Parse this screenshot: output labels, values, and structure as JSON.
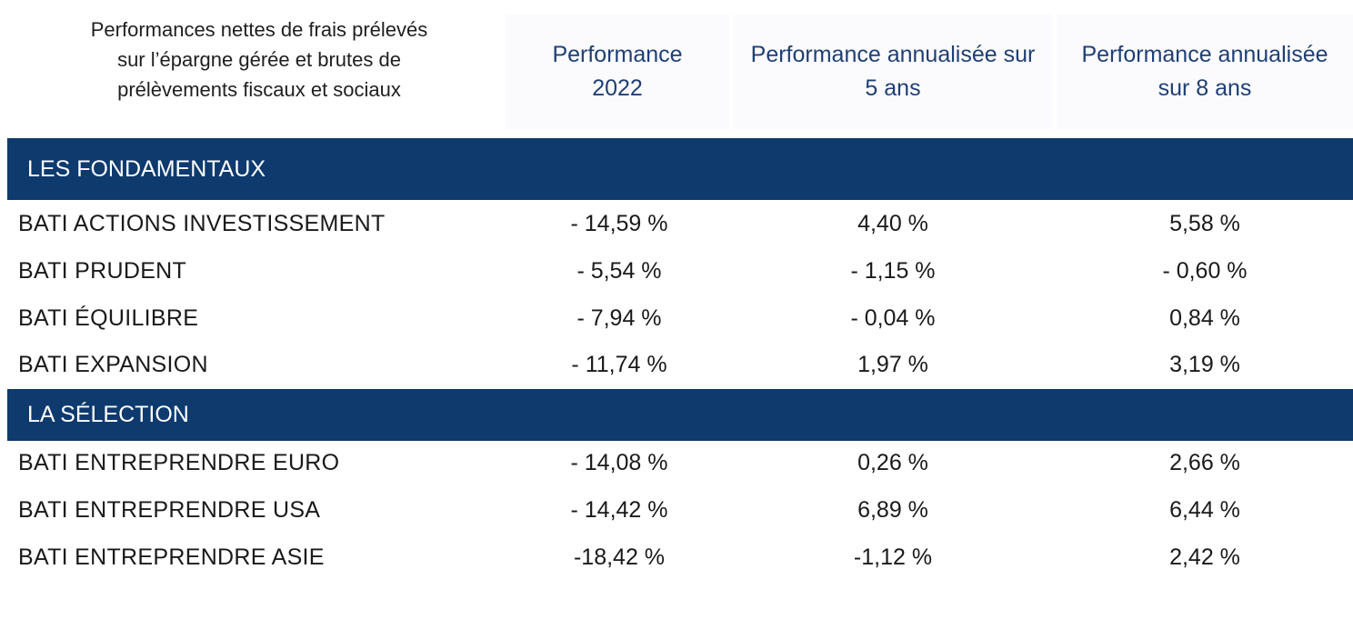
{
  "header": {
    "intro_lines": [
      "Performances nettes de frais prélevés",
      "sur l’épargne gérée et brutes de",
      "prélèvements fiscaux et sociaux"
    ],
    "columns": [
      {
        "line1": "Performance",
        "line2": "2022"
      },
      {
        "line1": "Performance annualisée sur",
        "line2": "5 ans"
      },
      {
        "line1": "Performance annualisée",
        "line2": "sur 8 ans"
      }
    ]
  },
  "colors": {
    "section_bar": "#0e3a6e",
    "column_header_text": "#1f3f75",
    "column_header_bg": "#fbfbfd"
  },
  "sections": [
    {
      "title": "LES FONDAMENTAUX",
      "rows": [
        {
          "name": "BATI ACTIONS INVESTISSEMENT",
          "values": [
            "- 14,59 %",
            "4,40 %",
            "5,58 %"
          ]
        },
        {
          "name": "BATI PRUDENT",
          "values": [
            "- 5,54 %",
            "- 1,15 %",
            "- 0,60 %"
          ]
        },
        {
          "name": "BATI ÉQUILIBRE",
          "values": [
            "- 7,94 %",
            "- 0,04 %",
            "0,84 %"
          ]
        },
        {
          "name": "BATI EXPANSION",
          "values": [
            "- 11,74 %",
            "1,97 %",
            "3,19 %"
          ]
        }
      ]
    },
    {
      "title": "LA SÉLECTION",
      "rows": [
        {
          "name": "BATI ENTREPRENDRE EURO",
          "values": [
            "- 14,08 %",
            "0,26 %",
            "2,66 %"
          ]
        },
        {
          "name": "BATI ENTREPRENDRE USA",
          "values": [
            "- 14,42 %",
            "6,89 %",
            "6,44 %"
          ]
        },
        {
          "name": "BATI ENTREPRENDRE ASIE",
          "values": [
            "-18,42 %",
            "-1,12 %",
            "2,42 %"
          ]
        }
      ]
    }
  ]
}
